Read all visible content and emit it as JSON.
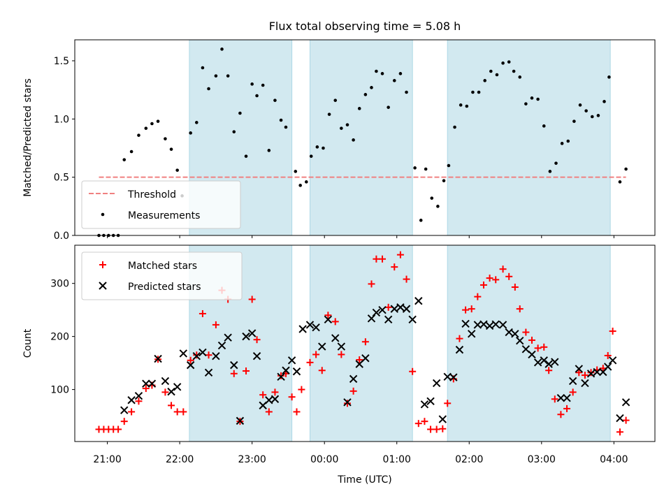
{
  "figure_title": "Flux total observing time = 5.08 h",
  "chart_data": [
    {
      "type": "scatter",
      "ylabel": "Matched/Predicted stars",
      "ylim": [
        0,
        1.68
      ],
      "xlim": [
        "20:33",
        "04:34"
      ],
      "y_ticks": [
        "0.0",
        "0.5",
        "1.0",
        "1.5"
      ],
      "grid": false,
      "legend_position": "lower-left",
      "shaded_intervals": [
        [
          "22:08",
          "23:33"
        ],
        [
          "23:48",
          "01:13"
        ],
        [
          "01:42",
          "03:57"
        ]
      ],
      "shade_color": "#d2e9f0",
      "threshold": {
        "name": "Threshold",
        "value": 0.5,
        "x_start": "20:53",
        "x_end": "04:10",
        "color": "#f08080"
      },
      "measurements": {
        "name": "Measurements",
        "color": "#000000",
        "points": [
          [
            "20:53",
            0.0
          ],
          [
            "20:57",
            0.0
          ],
          [
            "21:01",
            0.0
          ],
          [
            "21:05",
            0.0
          ],
          [
            "21:09",
            0.0
          ],
          [
            "21:14",
            0.65
          ],
          [
            "21:20",
            0.72
          ],
          [
            "21:26",
            0.86
          ],
          [
            "21:32",
            0.92
          ],
          [
            "21:37",
            0.96
          ],
          [
            "21:42",
            0.98
          ],
          [
            "21:48",
            0.83
          ],
          [
            "21:53",
            0.74
          ],
          [
            "21:58",
            0.56
          ],
          [
            "22:02",
            0.34
          ],
          [
            "22:09",
            0.88
          ],
          [
            "22:14",
            0.97
          ],
          [
            "22:19",
            1.44
          ],
          [
            "22:24",
            1.26
          ],
          [
            "22:30",
            1.37
          ],
          [
            "22:35",
            1.6
          ],
          [
            "22:40",
            1.37
          ],
          [
            "22:45",
            0.89
          ],
          [
            "22:50",
            1.05
          ],
          [
            "22:55",
            0.68
          ],
          [
            "23:00",
            1.3
          ],
          [
            "23:04",
            1.2
          ],
          [
            "23:09",
            1.29
          ],
          [
            "23:14",
            0.73
          ],
          [
            "23:19",
            1.16
          ],
          [
            "23:24",
            0.99
          ],
          [
            "23:28",
            0.93
          ],
          [
            "23:36",
            0.55
          ],
          [
            "23:40",
            0.43
          ],
          [
            "23:45",
            0.46
          ],
          [
            "23:49",
            0.68
          ],
          [
            "23:54",
            0.76
          ],
          [
            "23:59",
            0.75
          ],
          [
            "00:04",
            1.04
          ],
          [
            "00:09",
            1.16
          ],
          [
            "00:14",
            0.92
          ],
          [
            "00:19",
            0.95
          ],
          [
            "00:24",
            0.82
          ],
          [
            "00:29",
            1.09
          ],
          [
            "00:34",
            1.21
          ],
          [
            "00:39",
            1.27
          ],
          [
            "00:43",
            1.41
          ],
          [
            "00:48",
            1.39
          ],
          [
            "00:53",
            1.1
          ],
          [
            "00:58",
            1.33
          ],
          [
            "01:03",
            1.39
          ],
          [
            "01:08",
            1.23
          ],
          [
            "01:15",
            0.58
          ],
          [
            "01:20",
            0.13
          ],
          [
            "01:24",
            0.57
          ],
          [
            "01:29",
            0.32
          ],
          [
            "01:34",
            0.25
          ],
          [
            "01:39",
            0.47
          ],
          [
            "01:43",
            0.6
          ],
          [
            "01:48",
            0.93
          ],
          [
            "01:53",
            1.12
          ],
          [
            "01:58",
            1.11
          ],
          [
            "02:03",
            1.23
          ],
          [
            "02:08",
            1.23
          ],
          [
            "02:13",
            1.33
          ],
          [
            "02:18",
            1.41
          ],
          [
            "02:23",
            1.38
          ],
          [
            "02:28",
            1.48
          ],
          [
            "02:33",
            1.49
          ],
          [
            "02:37",
            1.41
          ],
          [
            "02:42",
            1.36
          ],
          [
            "02:47",
            1.13
          ],
          [
            "02:52",
            1.18
          ],
          [
            "02:57",
            1.17
          ],
          [
            "03:02",
            0.94
          ],
          [
            "03:07",
            0.55
          ],
          [
            "03:12",
            0.62
          ],
          [
            "03:17",
            0.79
          ],
          [
            "03:22",
            0.81
          ],
          [
            "03:27",
            0.98
          ],
          [
            "03:32",
            1.12
          ],
          [
            "03:37",
            1.07
          ],
          [
            "03:42",
            1.02
          ],
          [
            "03:47",
            1.03
          ],
          [
            "03:52",
            1.15
          ],
          [
            "03:56",
            1.36
          ],
          [
            "04:05",
            0.46
          ],
          [
            "04:10",
            0.57
          ]
        ]
      }
    },
    {
      "type": "scatter",
      "xlabel": "Time (UTC)",
      "ylabel": "Count",
      "ylim": [
        2,
        372
      ],
      "xlim": [
        "20:33",
        "04:34"
      ],
      "y_ticks": [
        "100",
        "200",
        "300"
      ],
      "x_ticks": [
        "21:00",
        "22:00",
        "23:00",
        "00:00",
        "01:00",
        "02:00",
        "03:00",
        "04:00"
      ],
      "grid": false,
      "legend_position": "upper-left",
      "shaded_intervals": [
        [
          "22:08",
          "23:33"
        ],
        [
          "23:48",
          "01:13"
        ],
        [
          "01:42",
          "03:57"
        ]
      ],
      "shade_color": "#d2e9f0",
      "series": [
        {
          "name": "Matched stars",
          "marker": "plus",
          "color": "#ff0000",
          "points": [
            [
              "20:53",
              25
            ],
            [
              "20:57",
              25
            ],
            [
              "21:01",
              25
            ],
            [
              "21:05",
              25
            ],
            [
              "21:09",
              25
            ],
            [
              "21:14",
              40
            ],
            [
              "21:20",
              58
            ],
            [
              "21:26",
              78
            ],
            [
              "21:32",
              102
            ],
            [
              "21:37",
              108
            ],
            [
              "21:42",
              157
            ],
            [
              "21:48",
              95
            ],
            [
              "21:53",
              70
            ],
            [
              "21:58",
              58
            ],
            [
              "22:03",
              58
            ],
            [
              "22:09",
              155
            ],
            [
              "22:14",
              165
            ],
            [
              "22:19",
              243
            ],
            [
              "22:24",
              165
            ],
            [
              "22:30",
              222
            ],
            [
              "22:35",
              287
            ],
            [
              "22:40",
              270
            ],
            [
              "22:45",
              130
            ],
            [
              "22:50",
              40
            ],
            [
              "22:55",
              135
            ],
            [
              "23:00",
              270
            ],
            [
              "23:04",
              194
            ],
            [
              "23:09",
              90
            ],
            [
              "23:14",
              58
            ],
            [
              "23:19",
              95
            ],
            [
              "23:24",
              126
            ],
            [
              "23:28",
              130
            ],
            [
              "23:33",
              86
            ],
            [
              "23:37",
              58
            ],
            [
              "23:41",
              100
            ],
            [
              "23:48",
              151
            ],
            [
              "23:53",
              166
            ],
            [
              "23:58",
              136
            ],
            [
              "00:03",
              240
            ],
            [
              "00:09",
              228
            ],
            [
              "00:14",
              166
            ],
            [
              "00:19",
              74
            ],
            [
              "00:24",
              97
            ],
            [
              "00:29",
              156
            ],
            [
              "00:34",
              190
            ],
            [
              "00:39",
              299
            ],
            [
              "00:43",
              346
            ],
            [
              "00:48",
              346
            ],
            [
              "00:53",
              255
            ],
            [
              "00:58",
              331
            ],
            [
              "01:03",
              354
            ],
            [
              "01:08",
              308
            ],
            [
              "01:13",
              134
            ],
            [
              "01:18",
              36
            ],
            [
              "01:23",
              40
            ],
            [
              "01:28",
              25
            ],
            [
              "01:33",
              25
            ],
            [
              "01:38",
              26
            ],
            [
              "01:42",
              74
            ],
            [
              "01:47",
              120
            ],
            [
              "01:52",
              196
            ],
            [
              "01:57",
              250
            ],
            [
              "02:02",
              252
            ],
            [
              "02:07",
              275
            ],
            [
              "02:12",
              297
            ],
            [
              "02:17",
              310
            ],
            [
              "02:22",
              307
            ],
            [
              "02:28",
              327
            ],
            [
              "02:33",
              313
            ],
            [
              "02:38",
              293
            ],
            [
              "02:42",
              252
            ],
            [
              "02:47",
              208
            ],
            [
              "02:52",
              193
            ],
            [
              "02:57",
              178
            ],
            [
              "03:02",
              180
            ],
            [
              "03:06",
              136
            ],
            [
              "03:11",
              82
            ],
            [
              "03:16",
              53
            ],
            [
              "03:21",
              64
            ],
            [
              "03:26",
              95
            ],
            [
              "03:31",
              132
            ],
            [
              "03:36",
              127
            ],
            [
              "03:41",
              132
            ],
            [
              "03:46",
              137
            ],
            [
              "03:51",
              140
            ],
            [
              "03:55",
              164
            ],
            [
              "03:59",
              210
            ],
            [
              "04:05",
              20
            ],
            [
              "04:10",
              42
            ]
          ]
        },
        {
          "name": "Predicted stars",
          "marker": "x",
          "color": "#000000",
          "points": [
            [
              "21:14",
              61
            ],
            [
              "21:20",
              80
            ],
            [
              "21:26",
              88
            ],
            [
              "21:32",
              111
            ],
            [
              "21:37",
              111
            ],
            [
              "21:42",
              158
            ],
            [
              "21:48",
              116
            ],
            [
              "21:53",
              96
            ],
            [
              "21:58",
              105
            ],
            [
              "22:03",
              168
            ],
            [
              "22:09",
              146
            ],
            [
              "22:14",
              163
            ],
            [
              "22:19",
              170
            ],
            [
              "22:24",
              132
            ],
            [
              "22:30",
              163
            ],
            [
              "22:35",
              183
            ],
            [
              "22:40",
              198
            ],
            [
              "22:45",
              146
            ],
            [
              "22:50",
              41
            ],
            [
              "22:55",
              200
            ],
            [
              "23:00",
              206
            ],
            [
              "23:04",
              163
            ],
            [
              "23:09",
              70
            ],
            [
              "23:14",
              80
            ],
            [
              "23:19",
              82
            ],
            [
              "23:24",
              124
            ],
            [
              "23:28",
              136
            ],
            [
              "23:33",
              155
            ],
            [
              "23:37",
              134
            ],
            [
              "23:42",
              214
            ],
            [
              "23:48",
              222
            ],
            [
              "23:53",
              217
            ],
            [
              "23:58",
              181
            ],
            [
              "00:03",
              232
            ],
            [
              "00:09",
              197
            ],
            [
              "00:14",
              181
            ],
            [
              "00:19",
              76
            ],
            [
              "00:24",
              120
            ],
            [
              "00:29",
              148
            ],
            [
              "00:34",
              159
            ],
            [
              "00:39",
              234
            ],
            [
              "00:43",
              245
            ],
            [
              "00:48",
              250
            ],
            [
              "00:53",
              232
            ],
            [
              "00:58",
              252
            ],
            [
              "01:03",
              255
            ],
            [
              "01:08",
              252
            ],
            [
              "01:13",
              232
            ],
            [
              "01:18",
              267
            ],
            [
              "01:23",
              72
            ],
            [
              "01:28",
              78
            ],
            [
              "01:33",
              112
            ],
            [
              "01:38",
              44
            ],
            [
              "01:42",
              124
            ],
            [
              "01:47",
              123
            ],
            [
              "01:52",
              175
            ],
            [
              "01:57",
              224
            ],
            [
              "02:02",
              205
            ],
            [
              "02:07",
              222
            ],
            [
              "02:12",
              223
            ],
            [
              "02:17",
              220
            ],
            [
              "02:22",
              223
            ],
            [
              "02:28",
              222
            ],
            [
              "02:33",
              208
            ],
            [
              "02:38",
              205
            ],
            [
              "02:42",
              192
            ],
            [
              "02:47",
              176
            ],
            [
              "02:52",
              166
            ],
            [
              "02:57",
              151
            ],
            [
              "03:02",
              155
            ],
            [
              "03:06",
              148
            ],
            [
              "03:11",
              152
            ],
            [
              "03:16",
              84
            ],
            [
              "03:21",
              84
            ],
            [
              "03:26",
              116
            ],
            [
              "03:31",
              139
            ],
            [
              "03:36",
              112
            ],
            [
              "03:41",
              130
            ],
            [
              "03:46",
              133
            ],
            [
              "03:51",
              133
            ],
            [
              "03:55",
              143
            ],
            [
              "03:59",
              155
            ],
            [
              "04:05",
              46
            ],
            [
              "04:10",
              76
            ]
          ]
        }
      ]
    }
  ]
}
